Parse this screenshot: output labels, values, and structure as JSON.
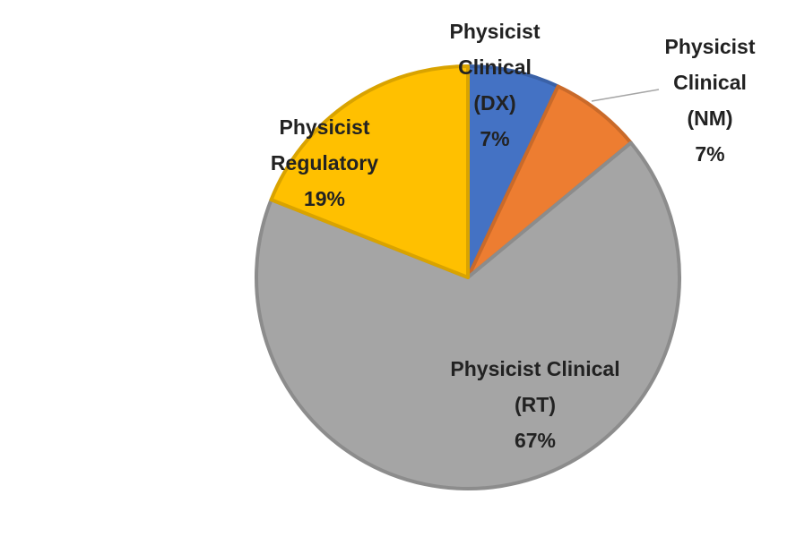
{
  "chart_data": {
    "type": "pie",
    "categories": [
      "Physicist Clinical (DX)",
      "Physicist Clinical (NM)",
      "Physicist Clinical (RT)",
      "Physicist Regulatory"
    ],
    "values": [
      7,
      7,
      67,
      19
    ],
    "value_labels": [
      "7%",
      "7%",
      "67%",
      "19%"
    ],
    "colors": [
      "#4472c4",
      "#ed7d31",
      "#a5a5a5",
      "#ffc000"
    ]
  }
}
